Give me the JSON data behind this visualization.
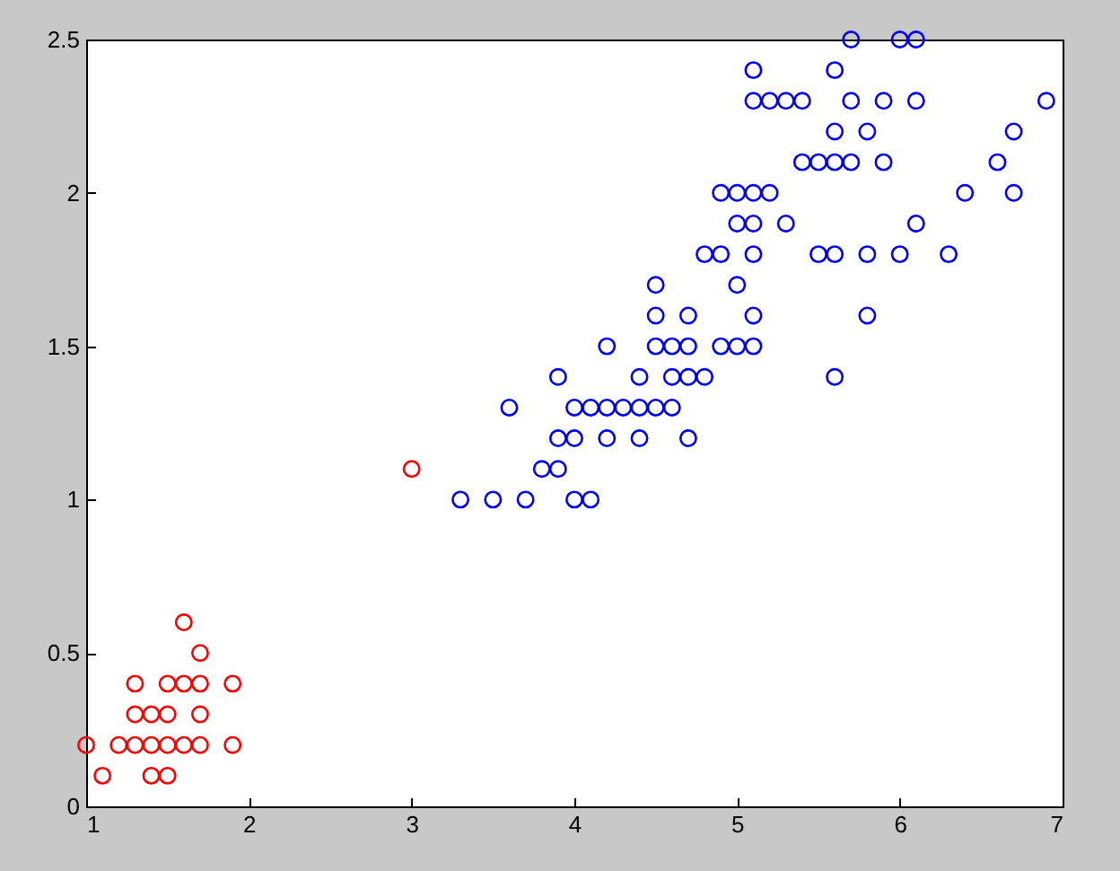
{
  "chart_data": {
    "type": "scatter",
    "marker": "circle",
    "xlim": [
      1,
      7
    ],
    "ylim": [
      0,
      2.5
    ],
    "xticks": [
      1,
      2,
      3,
      4,
      5,
      6,
      7
    ],
    "yticks": [
      0,
      0.5,
      1,
      1.5,
      2,
      2.5
    ],
    "grid": false,
    "series": [
      {
        "color": "#ff0000",
        "x": [
          1.6,
          1.7,
          1.3,
          1.5,
          1.6,
          1.7,
          1.9,
          1.3,
          1.4,
          1.5,
          1.7,
          1.0,
          1.2,
          1.3,
          1.4,
          1.5,
          1.6,
          1.7,
          1.9,
          1.1,
          1.4,
          1.5,
          3.0
        ],
        "values": [
          0.6,
          0.5,
          0.4,
          0.4,
          0.4,
          0.4,
          0.4,
          0.3,
          0.3,
          0.3,
          0.3,
          0.2,
          0.2,
          0.2,
          0.2,
          0.2,
          0.2,
          0.2,
          0.2,
          0.1,
          0.1,
          0.1,
          1.1
        ]
      },
      {
        "color": "#0000ff",
        "x": [
          3.3,
          3.5,
          3.7,
          4.0,
          4.1,
          3.8,
          3.9,
          3.9,
          4.0,
          4.2,
          4.4,
          4.7,
          3.6,
          4.0,
          4.1,
          4.2,
          4.3,
          4.4,
          4.5,
          4.6,
          3.9,
          4.4,
          4.6,
          4.7,
          4.8,
          5.6,
          4.2,
          4.5,
          4.6,
          4.7,
          4.9,
          5.0,
          5.1,
          4.5,
          4.7,
          5.1,
          5.8,
          4.5,
          5.0,
          4.8,
          4.9,
          5.1,
          5.5,
          5.6,
          5.8,
          6.0,
          6.3,
          5.0,
          5.1,
          5.3,
          6.1,
          4.9,
          5.0,
          5.1,
          5.2,
          6.4,
          6.7,
          5.4,
          5.5,
          5.6,
          5.7,
          5.9,
          6.6,
          5.6,
          5.8,
          6.7,
          5.1,
          5.2,
          5.3,
          5.4,
          5.7,
          5.9,
          6.1,
          6.9,
          5.1,
          5.6,
          5.7,
          6.0,
          6.1
        ],
        "values": [
          1.0,
          1.0,
          1.0,
          1.0,
          1.0,
          1.1,
          1.1,
          1.2,
          1.2,
          1.2,
          1.2,
          1.2,
          1.3,
          1.3,
          1.3,
          1.3,
          1.3,
          1.3,
          1.3,
          1.3,
          1.4,
          1.4,
          1.4,
          1.4,
          1.4,
          1.4,
          1.5,
          1.5,
          1.5,
          1.5,
          1.5,
          1.5,
          1.5,
          1.6,
          1.6,
          1.6,
          1.6,
          1.7,
          1.7,
          1.8,
          1.8,
          1.8,
          1.8,
          1.8,
          1.8,
          1.8,
          1.8,
          1.9,
          1.9,
          1.9,
          1.9,
          2.0,
          2.0,
          2.0,
          2.0,
          2.0,
          2.0,
          2.1,
          2.1,
          2.1,
          2.1,
          2.1,
          2.1,
          2.2,
          2.2,
          2.2,
          2.3,
          2.3,
          2.3,
          2.3,
          2.3,
          2.3,
          2.3,
          2.3,
          2.4,
          2.4,
          2.5,
          2.5,
          2.5
        ]
      }
    ]
  }
}
